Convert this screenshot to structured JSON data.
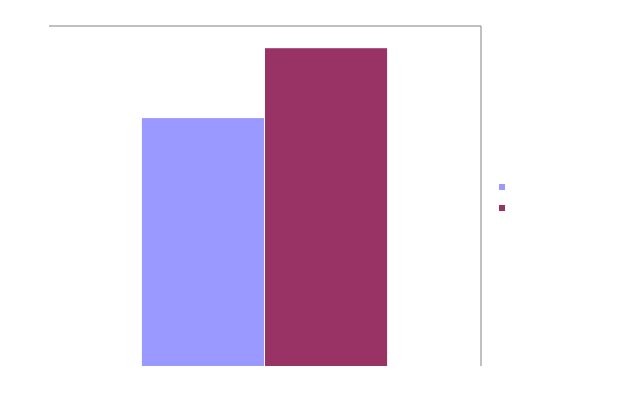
{
  "chart_data": {
    "type": "bar",
    "categories": [
      ""
    ],
    "series": [
      {
        "values": [
          78
        ],
        "color": "#9999ff"
      },
      {
        "values": [
          100
        ],
        "color": "#993366"
      }
    ],
    "ylim": [
      0,
      107
    ],
    "grid": false,
    "legend": "right"
  }
}
